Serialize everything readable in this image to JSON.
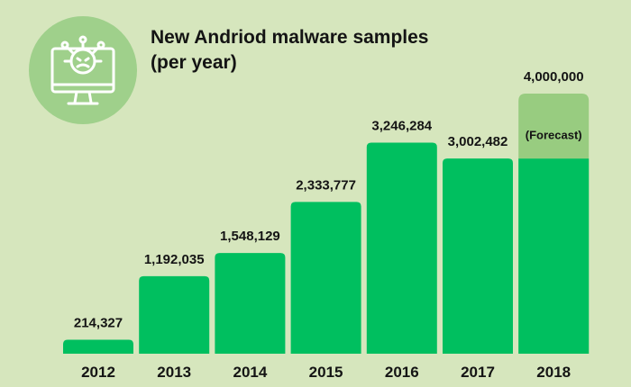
{
  "chart_data": {
    "type": "bar",
    "title_lines": [
      "New Andriod malware samples",
      "(per year)"
    ],
    "categories": [
      "2012",
      "2013",
      "2014",
      "2015",
      "2016",
      "2017",
      "2018"
    ],
    "values": [
      214327,
      1192035,
      1548129,
      2333777,
      3246284,
      3002482,
      4000000
    ],
    "value_labels": [
      "214,327",
      "1,192,035",
      "1,548,129",
      "2,333,777",
      "3,246,284",
      "3,002,482",
      "4,000,000"
    ],
    "forecast": {
      "category": "2018",
      "label": "(Forecast)",
      "actual_part": 3000000
    },
    "ylim": [
      0,
      4000000
    ],
    "grid": false,
    "legend": "none",
    "colors": {
      "bar": "#00bf5f",
      "forecast": "#98cc80",
      "background": "#d6e6bd",
      "icon_circle": "#9fd08b",
      "text": "#141414"
    }
  },
  "icon": {
    "name": "malware-virus-monitor-icon"
  }
}
